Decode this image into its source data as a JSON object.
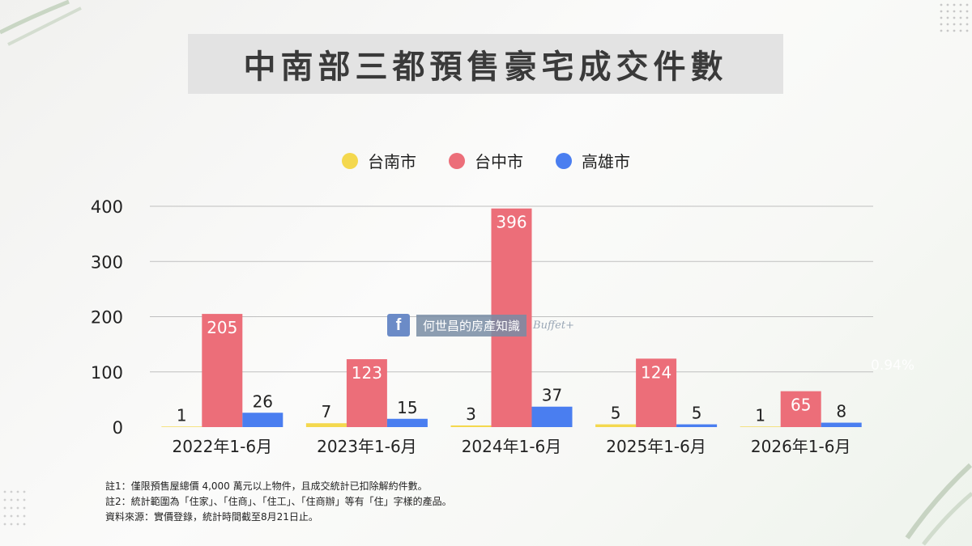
{
  "title": "中南部三都預售豪宅成交件數",
  "colors": {
    "tainan": "#f4d84e",
    "taichung": "#ec6e79",
    "kaohsiung": "#4a7ef0",
    "grid": "#bfbfbf",
    "title_bg": "#e3e3e3"
  },
  "chart_data": {
    "type": "bar",
    "categories": [
      "2022年1-6月",
      "2023年1-6月",
      "2024年1-6月",
      "2025年1-6月",
      "2026年1-6月"
    ],
    "series": [
      {
        "name": "台南市",
        "color": "#f4d84e",
        "values": [
          1,
          7,
          3,
          5,
          1
        ]
      },
      {
        "name": "台中市",
        "color": "#ec6e79",
        "values": [
          205,
          123,
          396,
          124,
          65
        ]
      },
      {
        "name": "高雄市",
        "color": "#4a7ef0",
        "values": [
          26,
          15,
          37,
          5,
          8
        ]
      }
    ],
    "y_ticks": [
      "0",
      "100",
      "200",
      "300",
      "400"
    ],
    "ylim": [
      0,
      400
    ],
    "grid": true,
    "legend_position": "top-center"
  },
  "notes": [
    "註1：僅限預售屋總價 4,000 萬元以上物件，且成交統計已扣除解約件數。",
    "註2：統計範圍為「住家」、「住商」、「住工」、「住商辦」等有「住」字樣的產品。",
    "資料來源：實價登錄，統計時間截至8月21日止。"
  ],
  "watermark": {
    "fb_letter": "f",
    "text": "何世昌的房產知識",
    "brand": "Buffet+"
  },
  "ghost_text": "0.94%"
}
